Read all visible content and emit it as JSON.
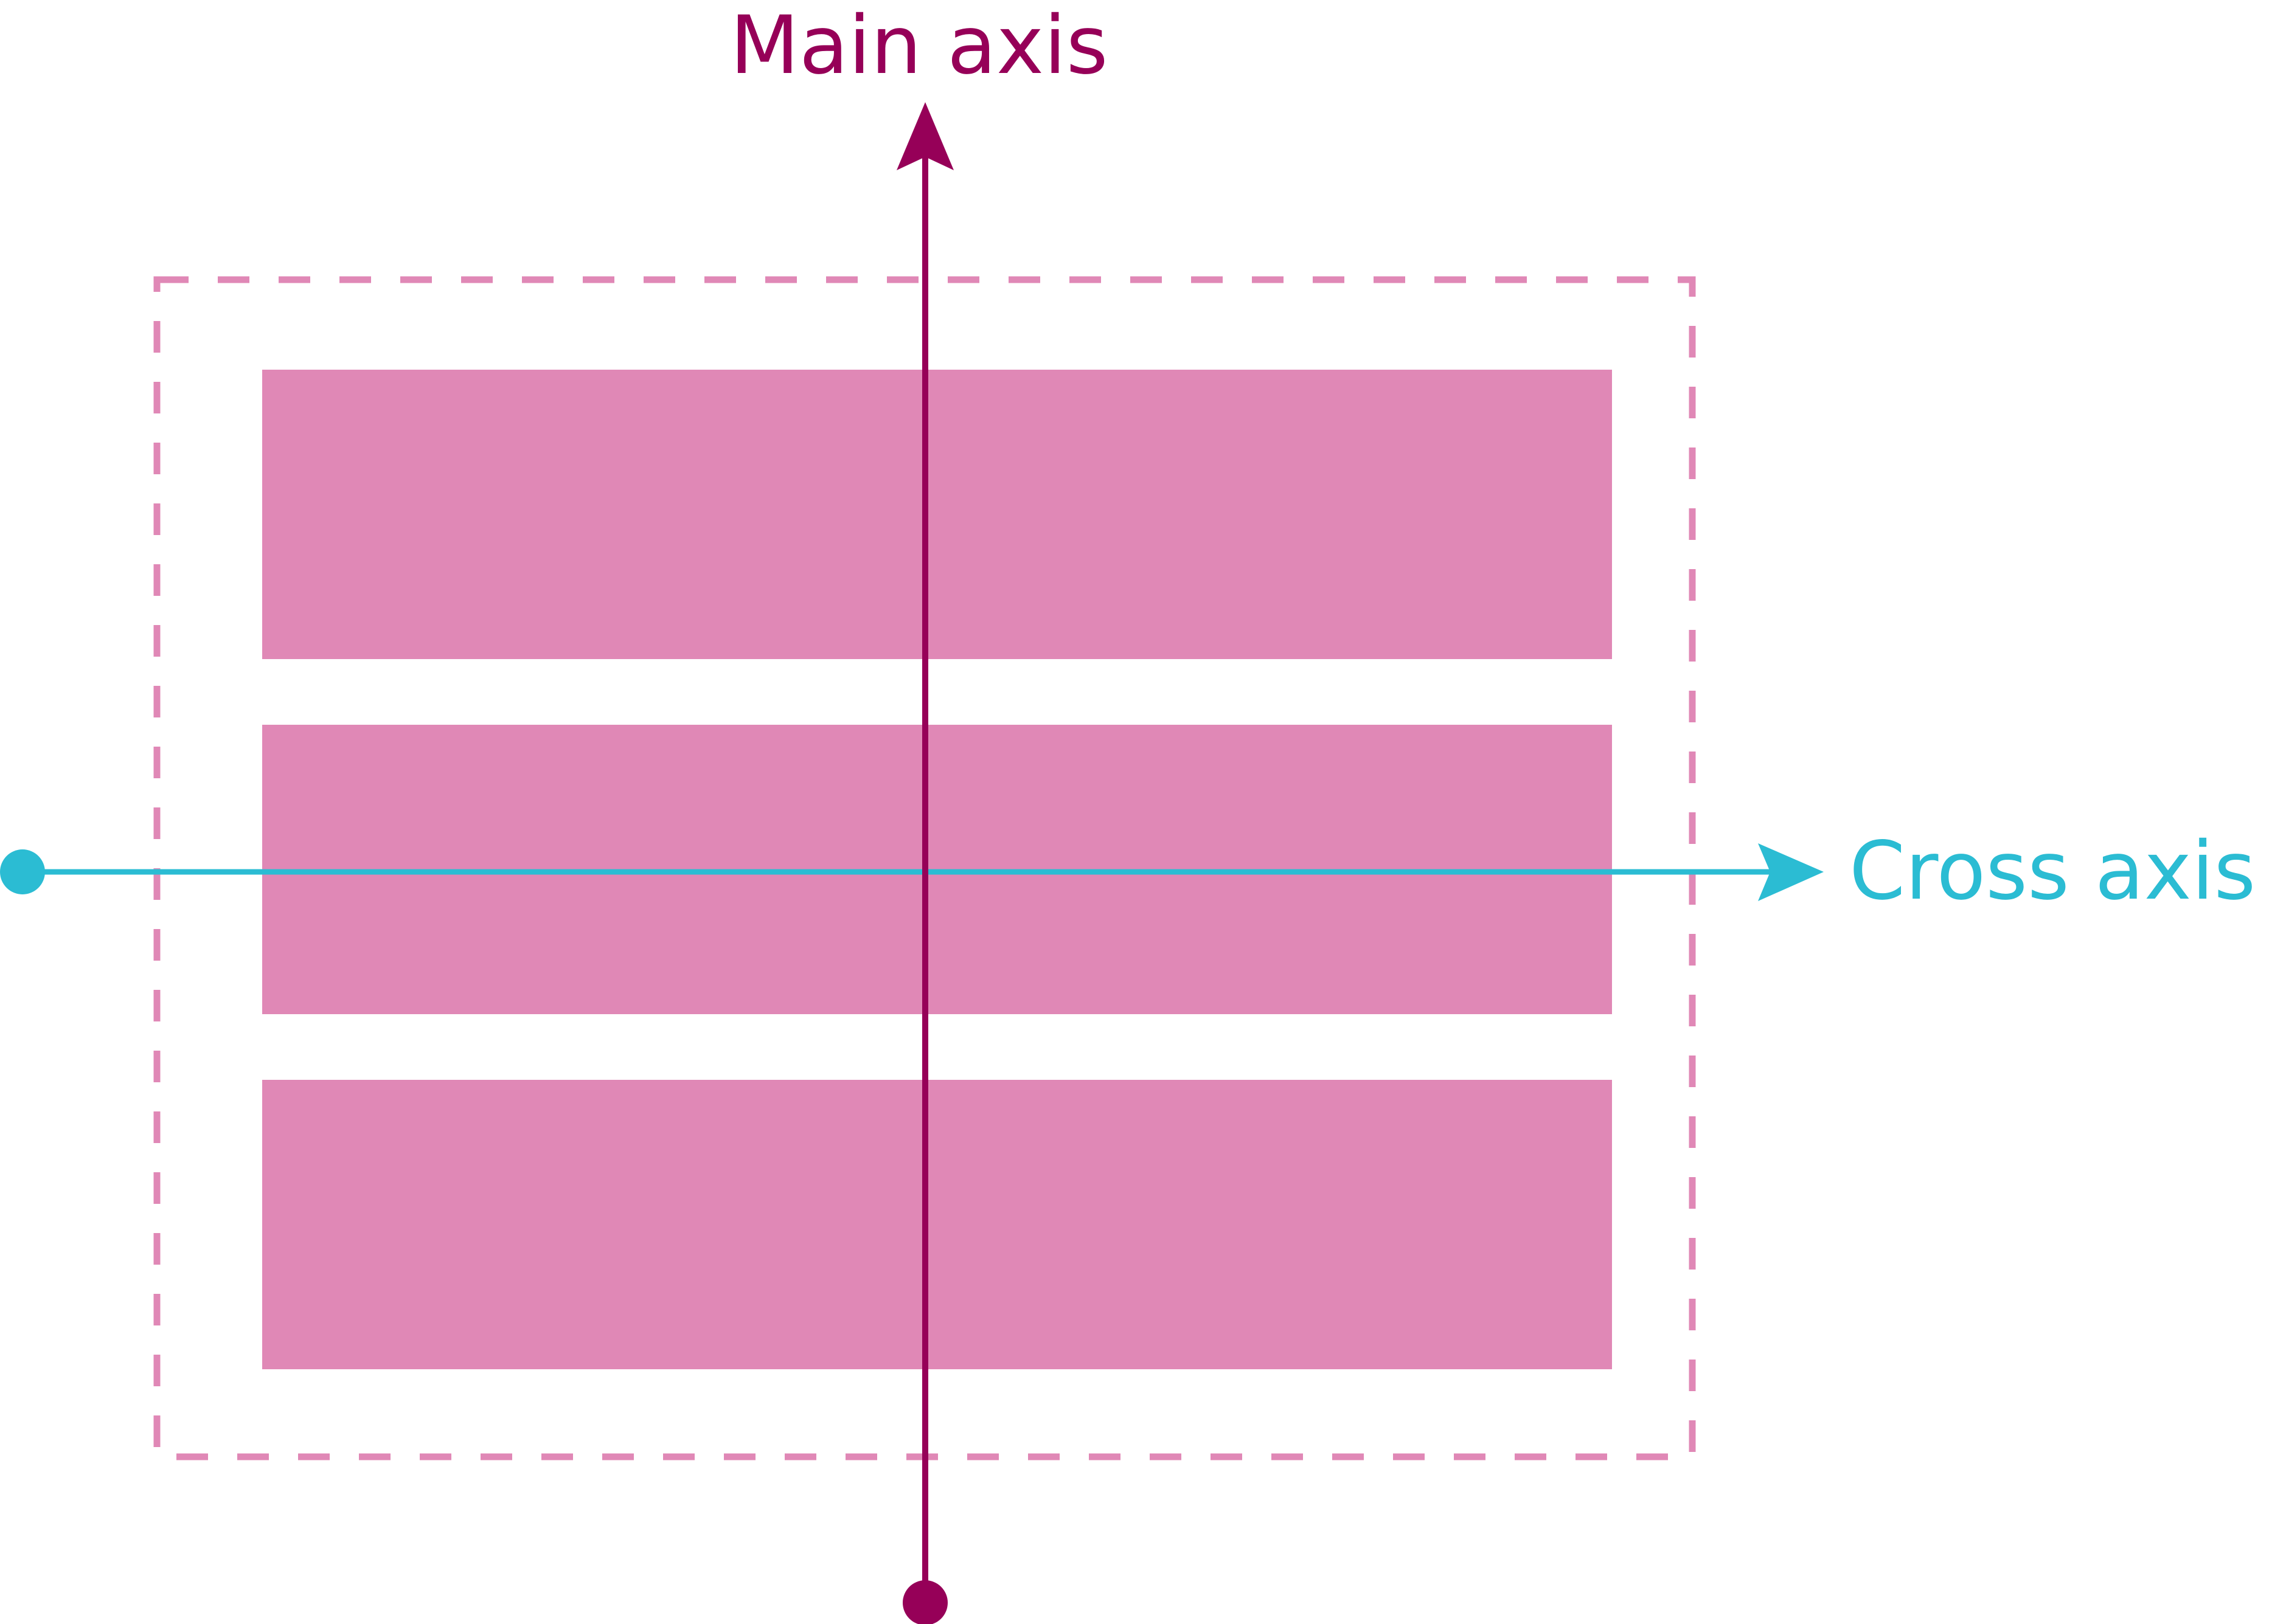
{
  "colors": {
    "main_axis": "#960058",
    "cross_axis": "#2BBCD3",
    "item_fill": "#E088B6",
    "container_border": "#E088B6",
    "background": "#FFFFFF"
  },
  "labels": {
    "main_axis": "Main axis",
    "cross_axis": "Cross axis"
  },
  "container": {
    "border_style": "dashed",
    "item_count": 3
  },
  "main_axis": {
    "direction": "vertical",
    "arrow": "up",
    "origin_marker": "dot"
  },
  "cross_axis": {
    "direction": "horizontal",
    "arrow": "right",
    "origin_marker": "dot"
  }
}
